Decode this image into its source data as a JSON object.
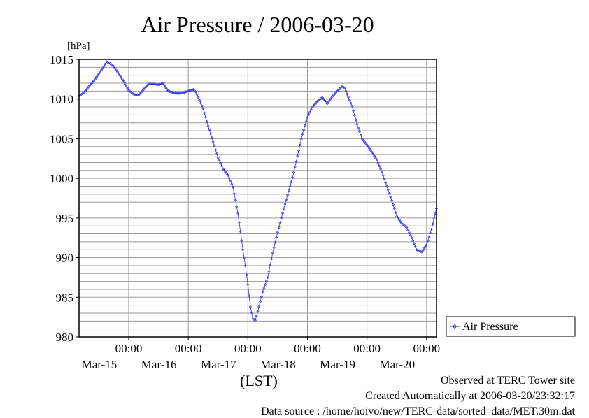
{
  "chart_data": {
    "type": "line",
    "title": "Air Pressure / 2006-03-20",
    "ylabel": "[hPa]",
    "xlabel": "(LST)",
    "ylim": [
      980,
      1015
    ],
    "yticks": [
      "1015",
      "1010",
      "1005",
      "1000",
      "995",
      "990",
      "985",
      "980"
    ],
    "xticks": [
      {
        "time": "00:00",
        "date": "Mar-15"
      },
      {
        "time": "00:00",
        "date": "Mar-16"
      },
      {
        "time": "00:00",
        "date": "Mar-17"
      },
      {
        "time": "00:00",
        "date": "Mar-18"
      },
      {
        "time": "00:00",
        "date": "Mar-19"
      },
      {
        "time": "00:00",
        "date": "Mar-20"
      }
    ],
    "xlim_hours": [
      -20,
      124
    ],
    "grid": true,
    "legend_position": "right",
    "series": [
      {
        "name": "Air Pressure",
        "color": "#3333ee",
        "marker": "diamond",
        "points": [
          [
            -20,
            1010.4
          ],
          [
            -18,
            1010.8
          ],
          [
            -16,
            1011.6
          ],
          [
            -14,
            1012.3
          ],
          [
            -12,
            1013.2
          ],
          [
            -10,
            1014.1
          ],
          [
            -9,
            1014.7
          ],
          [
            -8,
            1014.6
          ],
          [
            -6,
            1014.1
          ],
          [
            -4,
            1013.2
          ],
          [
            -2,
            1012.2
          ],
          [
            0,
            1011.1
          ],
          [
            2,
            1010.6
          ],
          [
            4,
            1010.5
          ],
          [
            6,
            1011.2
          ],
          [
            8,
            1011.9
          ],
          [
            10,
            1011.9
          ],
          [
            12,
            1011.8
          ],
          [
            14,
            1012.0
          ],
          [
            15,
            1011.4
          ],
          [
            16,
            1011.0
          ],
          [
            18,
            1010.8
          ],
          [
            20,
            1010.7
          ],
          [
            22,
            1010.8
          ],
          [
            24,
            1011.0
          ],
          [
            26,
            1011.2
          ],
          [
            27,
            1010.9
          ],
          [
            28,
            1010.2
          ],
          [
            30,
            1008.8
          ],
          [
            32,
            1006.6
          ],
          [
            34,
            1004.6
          ],
          [
            36,
            1002.6
          ],
          [
            38,
            1001.2
          ],
          [
            40,
            1000.4
          ],
          [
            42,
            998.9
          ],
          [
            44,
            995.6
          ],
          [
            46,
            991.0
          ],
          [
            47,
            989.0
          ],
          [
            48,
            986.6
          ],
          [
            49,
            983.8
          ],
          [
            50,
            982.3
          ],
          [
            51,
            982.1
          ],
          [
            52,
            983.2
          ],
          [
            54,
            985.7
          ],
          [
            56,
            987.5
          ],
          [
            58,
            990.6
          ],
          [
            60,
            993.2
          ],
          [
            62,
            995.6
          ],
          [
            64,
            997.9
          ],
          [
            66,
            1000.1
          ],
          [
            68,
            1002.8
          ],
          [
            70,
            1005.6
          ],
          [
            72,
            1007.7
          ],
          [
            74,
            1009.0
          ],
          [
            76,
            1009.7
          ],
          [
            78,
            1010.2
          ],
          [
            80,
            1009.4
          ],
          [
            82,
            1010.3
          ],
          [
            84,
            1011.0
          ],
          [
            86,
            1011.6
          ],
          [
            87,
            1011.4
          ],
          [
            88,
            1010.6
          ],
          [
            90,
            1009.1
          ],
          [
            92,
            1006.8
          ],
          [
            94,
            1005.0
          ],
          [
            96,
            1004.2
          ],
          [
            98,
            1003.3
          ],
          [
            100,
            1002.3
          ],
          [
            102,
            1000.8
          ],
          [
            104,
            999.0
          ],
          [
            106,
            997.2
          ],
          [
            108,
            995.2
          ],
          [
            110,
            994.3
          ],
          [
            112,
            993.8
          ],
          [
            114,
            992.5
          ],
          [
            116,
            991.0
          ],
          [
            118,
            990.7
          ],
          [
            120,
            991.6
          ],
          [
            122,
            993.6
          ],
          [
            124,
            996.2
          ]
        ]
      }
    ]
  },
  "footer": {
    "line1": "Observed at TERC Tower site",
    "line2": "Created Automatically at 2006-03-20/23:32:17",
    "line3": "Data source : /home/hoivo/new/TERC-data/sorted  data/MET.30m.dat"
  }
}
